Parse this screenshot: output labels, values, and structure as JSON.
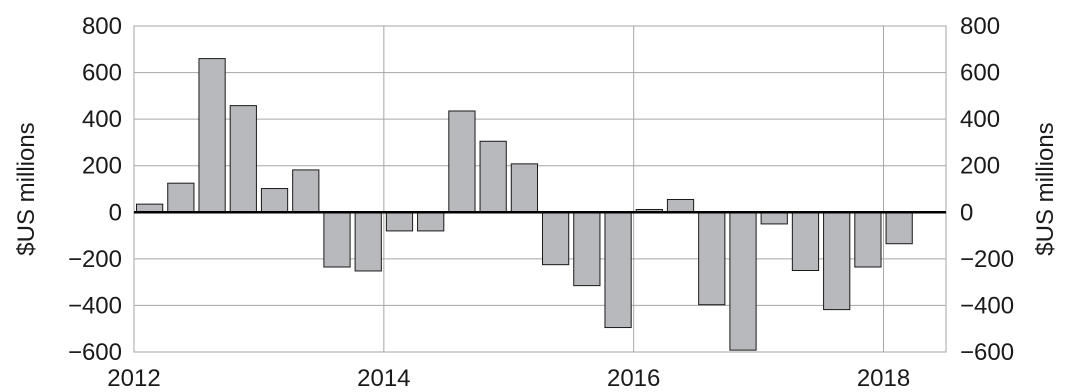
{
  "chart_data": {
    "type": "bar",
    "xlabel": "",
    "ylabel_left": "$US millions",
    "ylabel_right": "$US millions",
    "ylim": [
      -600,
      800
    ],
    "yticks": [
      -600,
      -400,
      -200,
      0,
      200,
      400,
      600,
      800
    ],
    "ytick_labels": [
      "−600",
      "−400",
      "−200",
      "0",
      "200",
      "400",
      "600",
      "800"
    ],
    "xlim": [
      2012.0,
      2018.5
    ],
    "xticks": [
      2012,
      2014,
      2016,
      2018
    ],
    "xtick_labels": [
      "2012",
      "2014",
      "2016",
      "2018"
    ],
    "grid": true,
    "x": [
      2012.125,
      2012.375,
      2012.625,
      2012.875,
      2013.125,
      2013.375,
      2013.625,
      2013.875,
      2014.125,
      2014.375,
      2014.625,
      2014.875,
      2015.125,
      2015.375,
      2015.625,
      2015.875,
      2016.125,
      2016.375,
      2016.625,
      2016.875,
      2017.125,
      2017.375,
      2017.625,
      2017.875,
      2018.125
    ],
    "values": [
      35,
      125,
      660,
      458,
      102,
      182,
      -235,
      -252,
      -80,
      -80,
      435,
      305,
      208,
      -225,
      -315,
      -495,
      12,
      55,
      -397,
      -592,
      -50,
      -250,
      -418,
      -235,
      -135
    ],
    "colors": {
      "bar_fill": "#b8b9bd",
      "bar_stroke": "#1a1a1a",
      "grid": "#a6a6a6",
      "zero_line": "#000000"
    }
  }
}
